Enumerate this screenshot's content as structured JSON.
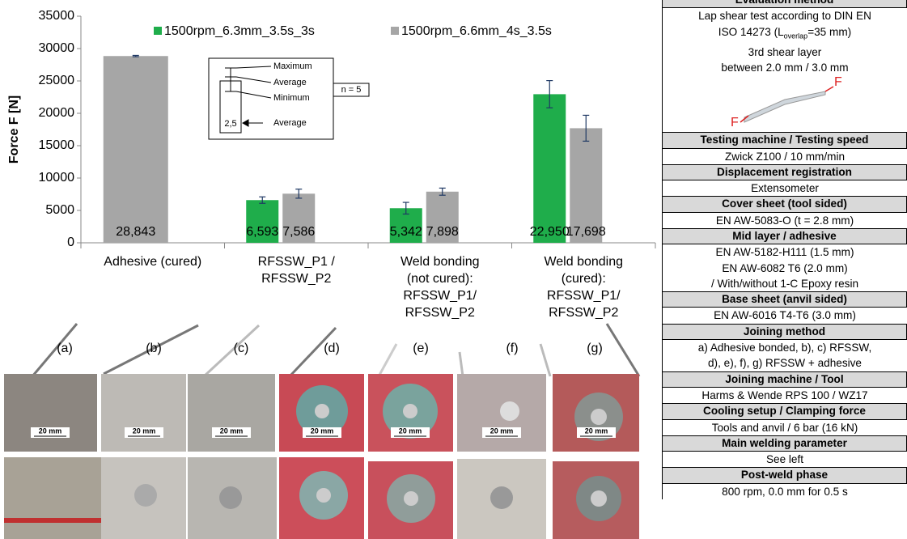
{
  "chart_data": {
    "type": "bar",
    "categories": [
      "Adhesive (cured)",
      "RFSSW_P1 /\nRFSSW_P2",
      "Weld bonding\n(not cured):\nRFSSW_P1/\nRFSSW_P2",
      "Weld bonding\n(cured):\nRFSSW_P1/\nRFSSW_P2"
    ],
    "series": [
      {
        "name": "1500rpm_6.3mm_3.5s_3s",
        "color": "#1fad4b",
        "values": [
          null,
          6593,
          5342,
          22950
        ],
        "value_labels": [
          null,
          "6,593",
          "5,342",
          "22,950"
        ],
        "errors": [
          null,
          500,
          900,
          2100
        ]
      },
      {
        "name": "1500rpm_6.6mm_4s_3.5s",
        "color": "#a6a6a6",
        "values": [
          28843,
          7586,
          7898,
          17698
        ],
        "value_labels": [
          "28,843",
          "7,586",
          "7,898",
          "17,698"
        ],
        "errors": [
          100,
          700,
          550,
          2000
        ]
      }
    ],
    "y_label": "Force F [N]",
    "ylim": [
      0,
      35000
    ],
    "yticks": [
      0,
      5000,
      10000,
      15000,
      20000,
      25000,
      30000,
      35000
    ],
    "grid": false,
    "legend": "top",
    "error_bar_color": "#1f3864",
    "annotations": {
      "maximum": "Maximum",
      "average": "Average",
      "minimum": "Minimum",
      "n": "n = 5",
      "bar_value": "2,5",
      "bar_average": "Average"
    }
  },
  "photos": {
    "labels": [
      "(a)",
      "(b)",
      "(c)",
      "(d)",
      "(e)",
      "(f)",
      "(g)"
    ],
    "scale_bars": [
      "20 mm",
      "20 mm",
      "20 mm",
      "20 mm",
      "20 mm",
      "20 mm",
      "20 mm"
    ]
  },
  "table": {
    "sections": [
      {
        "title": "Evaluation method",
        "lines": [
          "Lap shear test according to DIN EN",
          {
            "pre": "ISO 14273 (L",
            "sub": "overlap",
            "post": "=35 mm)"
          },
          "3rd shear layer",
          "between 2.0 mm / 3.0 mm"
        ],
        "figure_labels": [
          "F",
          "F"
        ]
      },
      {
        "title": "Testing machine / Testing speed",
        "lines": [
          "Zwick Z100 / 10 mm/min"
        ]
      },
      {
        "title": "Displacement registration",
        "lines": [
          "Extensometer"
        ]
      },
      {
        "title": "Cover sheet (tool sided)",
        "lines": [
          "EN AW-5083-O (t = 2.8 mm)"
        ]
      },
      {
        "title": "Mid layer / adhesive",
        "lines": [
          "EN AW-5182-H111 (1.5 mm)",
          "EN AW-6082 T6 (2.0 mm)",
          "/ With/without 1-C Epoxy resin"
        ]
      },
      {
        "title": "Base sheet  (anvil sided)",
        "lines": [
          "EN AW-6016 T4-T6 (3.0 mm)"
        ]
      },
      {
        "title": "Joining method",
        "lines": [
          "a) Adhesive bonded, b), c) RFSSW,",
          "d), e), f), g) RFSSW + adhesive"
        ]
      },
      {
        "title": "Joining machine / Tool",
        "lines": [
          "Harms & Wende RPS 100 / WZ17"
        ]
      },
      {
        "title": "Cooling setup / Clamping force",
        "lines": [
          "Tools and anvil / 6 bar (16 kN)"
        ]
      },
      {
        "title": "Main welding parameter",
        "lines": [
          "See left"
        ]
      },
      {
        "title": "Post-weld phase",
        "lines": [
          "800 rpm, 0.0 mm for 0.5 s"
        ]
      }
    ]
  }
}
